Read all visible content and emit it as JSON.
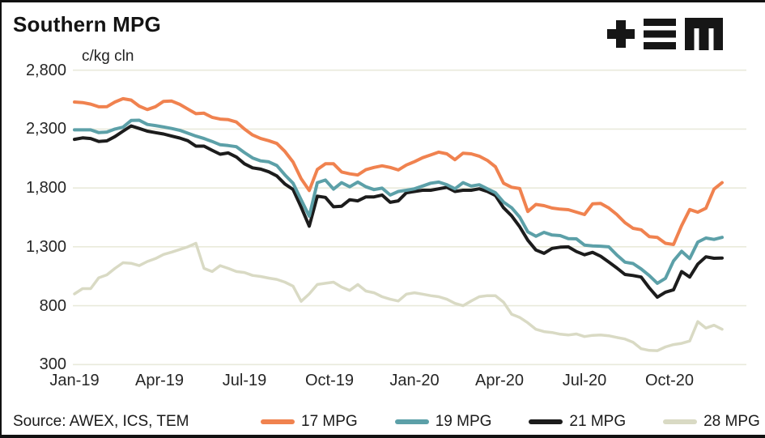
{
  "header": {
    "title": "Southern MPG",
    "units": "c/kg cln"
  },
  "logo": {
    "name": "TEM logo",
    "color": "#161616"
  },
  "footer": {
    "source": "Source: AWEX, ICS, TEM"
  },
  "colors": {
    "grid": "#E9EADB",
    "tick_text": "#262626",
    "background": "#ffffff"
  },
  "chart_data": {
    "type": "line",
    "title": "Southern MPG",
    "ylabel": "c/kg cln",
    "ylim": [
      300,
      2800
    ],
    "grid": "horizontal",
    "legend_position": "bottom",
    "y_ticks": [
      300,
      800,
      1300,
      1800,
      2300,
      2800
    ],
    "y_tick_labels": [
      "300",
      "800",
      "1,300",
      "1,800",
      "2,300",
      "2,800"
    ],
    "x_unit": "months since Jan-2019",
    "x_start_month": 0,
    "x_step_month": 0.2857,
    "x_ticks": [
      {
        "month": 0,
        "label": "Jan-19"
      },
      {
        "month": 3,
        "label": "Apr-19"
      },
      {
        "month": 6,
        "label": "Jul-19"
      },
      {
        "month": 9,
        "label": "Oct-19"
      },
      {
        "month": 12,
        "label": "Jan-20"
      },
      {
        "month": 15,
        "label": "Apr-20"
      },
      {
        "month": 18,
        "label": "Jul-20"
      },
      {
        "month": 21,
        "label": "Oct-20"
      }
    ],
    "draw_order": [
      3,
      2,
      1,
      0
    ],
    "series": [
      {
        "name": "17 MPG",
        "color": "#F0824F",
        "width": 4,
        "values": [
          2530,
          2525,
          2512,
          2489,
          2490,
          2530,
          2558,
          2546,
          2495,
          2466,
          2490,
          2535,
          2538,
          2510,
          2470,
          2431,
          2435,
          2400,
          2385,
          2380,
          2360,
          2300,
          2250,
          2220,
          2201,
          2178,
          2110,
          2020,
          1879,
          1778,
          1957,
          2005,
          2005,
          1936,
          1920,
          1910,
          1955,
          1974,
          1988,
          1974,
          1953,
          1995,
          2023,
          2057,
          2080,
          2104,
          2090,
          2040,
          2095,
          2090,
          2070,
          2034,
          1980,
          1840,
          1806,
          1795,
          1600,
          1660,
          1650,
          1629,
          1620,
          1615,
          1595,
          1574,
          1665,
          1668,
          1630,
          1574,
          1505,
          1457,
          1445,
          1387,
          1380,
          1330,
          1320,
          1480,
          1617,
          1594,
          1628,
          1790,
          1845
        ]
      },
      {
        "name": "19 MPG",
        "color": "#5CA0A8",
        "width": 4,
        "values": [
          2293,
          2293,
          2293,
          2270,
          2275,
          2300,
          2316,
          2373,
          2375,
          2339,
          2330,
          2318,
          2305,
          2290,
          2265,
          2240,
          2220,
          2195,
          2167,
          2160,
          2150,
          2100,
          2055,
          2030,
          2022,
          1990,
          1910,
          1840,
          1700,
          1560,
          1845,
          1867,
          1790,
          1845,
          1810,
          1850,
          1810,
          1786,
          1798,
          1740,
          1770,
          1780,
          1793,
          1816,
          1840,
          1850,
          1827,
          1793,
          1845,
          1816,
          1827,
          1793,
          1759,
          1680,
          1632,
          1552,
          1427,
          1390,
          1423,
          1400,
          1395,
          1370,
          1368,
          1315,
          1307,
          1305,
          1300,
          1230,
          1170,
          1158,
          1112,
          1056,
          990,
          1032,
          1180,
          1262,
          1200,
          1340,
          1375,
          1363,
          1380
        ]
      },
      {
        "name": "21 MPG",
        "color": "#1C1C1C",
        "width": 4,
        "values": [
          2213,
          2225,
          2220,
          2195,
          2200,
          2236,
          2282,
          2327,
          2305,
          2282,
          2270,
          2258,
          2240,
          2224,
          2201,
          2155,
          2155,
          2120,
          2086,
          2097,
          2063,
          2005,
          1971,
          1960,
          1937,
          1902,
          1833,
          1787,
          1637,
          1475,
          1730,
          1720,
          1640,
          1645,
          1700,
          1690,
          1724,
          1724,
          1740,
          1678,
          1690,
          1759,
          1770,
          1780,
          1780,
          1793,
          1805,
          1770,
          1780,
          1780,
          1793,
          1770,
          1736,
          1632,
          1563,
          1470,
          1356,
          1273,
          1245,
          1287,
          1297,
          1300,
          1260,
          1232,
          1253,
          1220,
          1171,
          1120,
          1065,
          1056,
          1043,
          952,
          872,
          915,
          935,
          1090,
          1043,
          1153,
          1215,
          1203,
          1205
        ]
      },
      {
        "name": "28 MPG",
        "color": "#D9DAC4",
        "width": 3.5,
        "values": [
          900,
          945,
          945,
          1037,
          1062,
          1117,
          1165,
          1160,
          1140,
          1175,
          1200,
          1235,
          1255,
          1277,
          1300,
          1330,
          1117,
          1090,
          1140,
          1117,
          1090,
          1082,
          1057,
          1048,
          1034,
          1023,
          1000,
          966,
          837,
          900,
          980,
          990,
          1000,
          958,
          930,
          980,
          924,
          910,
          876,
          855,
          840,
          898,
          910,
          898,
          885,
          876,
          855,
          820,
          800,
          840,
          876,
          885,
          885,
          830,
          728,
          700,
          655,
          600,
          580,
          572,
          558,
          551,
          560,
          538,
          548,
          551,
          545,
          530,
          517,
          490,
          435,
          420,
          418,
          450,
          470,
          480,
          500,
          665,
          610,
          634,
          600
        ]
      }
    ]
  }
}
